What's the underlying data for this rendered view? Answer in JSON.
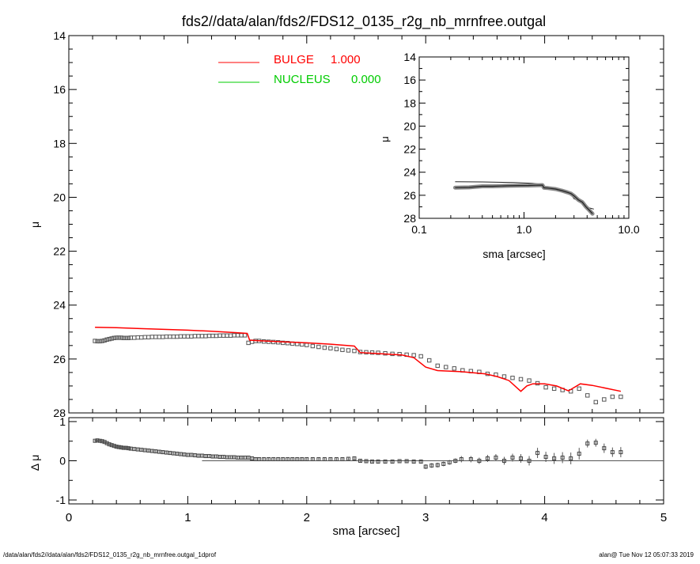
{
  "chart_data": [
    {
      "type": "scatter",
      "panel": "main",
      "title": "fds2//data/alan/fds2/FDS12_0135_r2g_nb_mrnfree.outgal",
      "xlabel": "",
      "ylabel": "μ",
      "xlim": [
        0,
        5
      ],
      "ylim": [
        28,
        14
      ],
      "y_inverted": true,
      "x_ticks": [],
      "y_ticks": [
        "14",
        "16",
        "18",
        "20",
        "22",
        "24",
        "26",
        "28"
      ],
      "legend_position": "top-center",
      "legend": [
        {
          "name": "BULGE",
          "value": "1.000",
          "color": "#ff0000"
        },
        {
          "name": "NUCLEUS",
          "value": "0.000",
          "color": "#00cc00"
        }
      ],
      "series": [
        {
          "name": "data",
          "marker": "square",
          "color": "#555555",
          "x": [
            0.22,
            0.24,
            0.26,
            0.28,
            0.3,
            0.32,
            0.34,
            0.36,
            0.38,
            0.4,
            0.42,
            0.44,
            0.46,
            0.48,
            0.5,
            0.52,
            0.55,
            0.58,
            0.61,
            0.64,
            0.67,
            0.7,
            0.73,
            0.76,
            0.79,
            0.82,
            0.85,
            0.88,
            0.91,
            0.94,
            0.97,
            1.0,
            1.03,
            1.06,
            1.09,
            1.12,
            1.15,
            1.18,
            1.21,
            1.24,
            1.27,
            1.3,
            1.33,
            1.36,
            1.39,
            1.42,
            1.45,
            1.48,
            1.51,
            1.54,
            1.57,
            1.6,
            1.64,
            1.68,
            1.72,
            1.76,
            1.8,
            1.84,
            1.88,
            1.92,
            1.96,
            2.0,
            2.05,
            2.1,
            2.15,
            2.2,
            2.25,
            2.3,
            2.35,
            2.4,
            2.45,
            2.5,
            2.55,
            2.6,
            2.66,
            2.72,
            2.78,
            2.84,
            2.9,
            2.96,
            3.03,
            3.1,
            3.17,
            3.24,
            3.31,
            3.38,
            3.45,
            3.52,
            3.59,
            3.66,
            3.73,
            3.8,
            3.87,
            3.94,
            4.01,
            4.08,
            4.15,
            4.22,
            4.29,
            4.36,
            4.43,
            4.5,
            4.57,
            4.64
          ],
          "y": [
            25.33,
            25.34,
            25.34,
            25.33,
            25.31,
            25.28,
            25.26,
            25.24,
            25.22,
            25.21,
            25.21,
            25.21,
            25.22,
            25.22,
            25.22,
            25.21,
            25.21,
            25.2,
            25.2,
            25.19,
            25.19,
            25.18,
            25.18,
            25.18,
            25.18,
            25.17,
            25.17,
            25.17,
            25.17,
            25.16,
            25.16,
            25.16,
            25.16,
            25.15,
            25.15,
            25.15,
            25.15,
            25.14,
            25.14,
            25.14,
            25.13,
            25.13,
            25.13,
            25.13,
            25.12,
            25.12,
            25.12,
            25.12,
            25.4,
            25.36,
            25.33,
            25.33,
            25.35,
            25.36,
            25.37,
            25.38,
            25.4,
            25.41,
            25.43,
            25.44,
            25.46,
            25.48,
            25.52,
            25.55,
            25.58,
            25.6,
            25.63,
            25.66,
            25.68,
            25.7,
            25.74,
            25.75,
            25.76,
            25.77,
            25.79,
            25.81,
            25.82,
            25.84,
            25.86,
            25.9,
            26.05,
            26.25,
            26.3,
            26.35,
            26.42,
            26.45,
            26.48,
            26.55,
            26.58,
            26.65,
            26.7,
            26.75,
            26.8,
            26.9,
            27.05,
            27.1,
            27.15,
            27.2,
            27.1,
            27.35,
            27.6,
            27.5,
            27.4,
            27.4
          ]
        },
        {
          "name": "BULGE",
          "marker": "line",
          "color": "#ff0000",
          "x": [
            0.22,
            0.4,
            0.6,
            0.8,
            1.0,
            1.2,
            1.4,
            1.5,
            1.52,
            1.6,
            1.8,
            2.0,
            2.2,
            2.4,
            2.45,
            2.6,
            2.8,
            2.9,
            3.0,
            3.1,
            3.3,
            3.5,
            3.6,
            3.7,
            3.8,
            3.85,
            3.9,
            4.0,
            4.1,
            4.2,
            4.3,
            4.4,
            4.64
          ],
          "y": [
            24.82,
            24.84,
            24.87,
            24.9,
            24.93,
            24.97,
            25.02,
            25.05,
            25.3,
            25.32,
            25.36,
            25.4,
            25.45,
            25.52,
            25.76,
            25.8,
            25.85,
            25.95,
            26.3,
            26.43,
            26.47,
            26.55,
            26.65,
            26.8,
            27.2,
            27.0,
            26.92,
            26.92,
            27.0,
            27.18,
            26.92,
            26.98,
            27.2
          ]
        }
      ]
    },
    {
      "type": "line",
      "panel": "inset",
      "xlabel": "sma [arcsec]",
      "ylabel": "μ",
      "x_scale": "log",
      "xlim": [
        0.1,
        10.0
      ],
      "ylim": [
        28,
        14
      ],
      "y_inverted": true,
      "x_ticks": [
        "0.1",
        "1.0",
        "10.0"
      ],
      "y_ticks": [
        "14",
        "16",
        "18",
        "20",
        "22",
        "24",
        "26",
        "28"
      ],
      "series": [
        {
          "name": "data",
          "x": [
            0.22,
            0.3,
            0.4,
            0.5,
            0.7,
            0.9,
            1.1,
            1.3,
            1.5,
            1.55,
            1.7,
            2.0,
            2.3,
            2.6,
            2.8,
            3.0,
            3.3,
            3.6,
            3.9,
            4.2,
            4.5
          ],
          "y": [
            25.34,
            25.32,
            25.22,
            25.22,
            25.18,
            25.16,
            25.15,
            25.13,
            25.12,
            25.35,
            25.38,
            25.46,
            25.6,
            25.75,
            25.85,
            26.05,
            26.4,
            26.6,
            27.0,
            27.3,
            27.6
          ]
        },
        {
          "name": "BULGE",
          "x": [
            0.22,
            0.4,
            0.8,
            1.2,
            1.5,
            1.55,
            1.7,
            2.0,
            2.3,
            2.6,
            2.8,
            3.0,
            3.3,
            3.6,
            3.9,
            4.2,
            4.64
          ],
          "y": [
            24.82,
            24.84,
            24.9,
            24.97,
            25.05,
            25.3,
            25.34,
            25.4,
            25.5,
            25.78,
            25.9,
            26.3,
            26.47,
            26.6,
            26.95,
            27.1,
            27.2
          ]
        }
      ]
    },
    {
      "type": "scatter",
      "panel": "residual",
      "xlabel": "sma [arcsec]",
      "ylabel": "Δ μ",
      "xlim": [
        0,
        5
      ],
      "ylim": [
        -1.1,
        1.1
      ],
      "x_ticks": [
        "0",
        "1",
        "2",
        "3",
        "4",
        "5"
      ],
      "y_ticks": [
        "1",
        "0",
        "-1"
      ],
      "zero_line_x": [
        1.12,
        5.0
      ],
      "series": [
        {
          "name": "residual",
          "x": [
            0.22,
            0.24,
            0.26,
            0.28,
            0.3,
            0.32,
            0.34,
            0.36,
            0.38,
            0.4,
            0.42,
            0.44,
            0.46,
            0.48,
            0.5,
            0.52,
            0.55,
            0.58,
            0.61,
            0.64,
            0.67,
            0.7,
            0.73,
            0.76,
            0.79,
            0.82,
            0.85,
            0.88,
            0.91,
            0.94,
            0.97,
            1.0,
            1.03,
            1.06,
            1.09,
            1.12,
            1.15,
            1.18,
            1.21,
            1.24,
            1.27,
            1.3,
            1.33,
            1.36,
            1.39,
            1.42,
            1.45,
            1.48,
            1.51,
            1.54,
            1.57,
            1.6,
            1.64,
            1.68,
            1.72,
            1.76,
            1.8,
            1.84,
            1.88,
            1.92,
            1.96,
            2.0,
            2.05,
            2.1,
            2.15,
            2.2,
            2.25,
            2.3,
            2.35,
            2.4,
            2.45,
            2.5,
            2.55,
            2.6,
            2.66,
            2.72,
            2.78,
            2.84,
            2.9,
            2.96,
            3.0,
            3.05,
            3.1,
            3.15,
            3.2,
            3.25,
            3.3,
            3.38,
            3.45,
            3.52,
            3.59,
            3.66,
            3.73,
            3.8,
            3.87,
            3.94,
            4.01,
            4.08,
            4.15,
            4.22,
            4.29,
            4.36,
            4.43,
            4.5,
            4.57,
            4.64
          ],
          "y": [
            0.51,
            0.52,
            0.51,
            0.5,
            0.48,
            0.45,
            0.42,
            0.4,
            0.38,
            0.36,
            0.35,
            0.34,
            0.33,
            0.33,
            0.32,
            0.31,
            0.3,
            0.29,
            0.28,
            0.27,
            0.26,
            0.25,
            0.24,
            0.23,
            0.22,
            0.21,
            0.2,
            0.19,
            0.18,
            0.17,
            0.16,
            0.15,
            0.15,
            0.14,
            0.13,
            0.13,
            0.12,
            0.12,
            0.11,
            0.11,
            0.1,
            0.1,
            0.09,
            0.09,
            0.09,
            0.08,
            0.08,
            0.08,
            0.08,
            0.06,
            0.04,
            0.04,
            0.04,
            0.04,
            0.04,
            0.04,
            0.04,
            0.04,
            0.04,
            0.04,
            0.04,
            0.04,
            0.04,
            0.04,
            0.04,
            0.04,
            0.04,
            0.04,
            0.05,
            0.06,
            0.0,
            -0.01,
            -0.02,
            -0.02,
            -0.02,
            -0.02,
            -0.01,
            -0.01,
            -0.02,
            -0.02,
            -0.15,
            -0.12,
            -0.11,
            -0.08,
            -0.04,
            0.0,
            0.04,
            0.04,
            0.0,
            0.06,
            0.08,
            0.0,
            0.08,
            0.06,
            0.0,
            0.2,
            0.1,
            0.06,
            0.08,
            0.06,
            0.18,
            0.44,
            0.46,
            0.32,
            0.22,
            0.22
          ],
          "err": [
            0.02,
            0.02,
            0.02,
            0.02,
            0.02,
            0.02,
            0.02,
            0.02,
            0.02,
            0.03,
            0.03,
            0.03,
            0.03,
            0.03,
            0.03,
            0.04,
            0.04,
            0.04,
            0.04,
            0.04,
            0.05,
            0.05,
            0.05,
            0.05,
            0.05,
            0.05,
            0.05,
            0.05,
            0.05,
            0.05,
            0.05,
            0.05,
            0.05,
            0.05,
            0.05,
            0.05,
            0.05,
            0.05,
            0.05,
            0.05,
            0.05,
            0.04,
            0.04,
            0.04,
            0.04,
            0.04,
            0.04,
            0.04,
            0.04,
            0.03,
            0.03,
            0.03,
            0.03,
            0.03,
            0.03,
            0.03,
            0.03,
            0.03,
            0.03,
            0.03,
            0.03,
            0.03,
            0.03,
            0.03,
            0.03,
            0.03,
            0.03,
            0.03,
            0.03,
            0.03,
            0.04,
            0.04,
            0.04,
            0.04,
            0.04,
            0.04,
            0.04,
            0.04,
            0.05,
            0.05,
            0.06,
            0.06,
            0.06,
            0.06,
            0.06,
            0.06,
            0.08,
            0.08,
            0.08,
            0.09,
            0.09,
            0.1,
            0.1,
            0.11,
            0.12,
            0.13,
            0.13,
            0.14,
            0.14,
            0.15,
            0.15,
            0.1,
            0.1,
            0.12,
            0.12,
            0.13
          ]
        }
      ]
    }
  ],
  "footer": {
    "left": "/data/alan/fds2//data/alan/fds2/FDS12_0135_r2g_nb_mrnfree.outgal_1dprof",
    "right": "alan@  Tue Nov 12 05:07:33 2019"
  }
}
